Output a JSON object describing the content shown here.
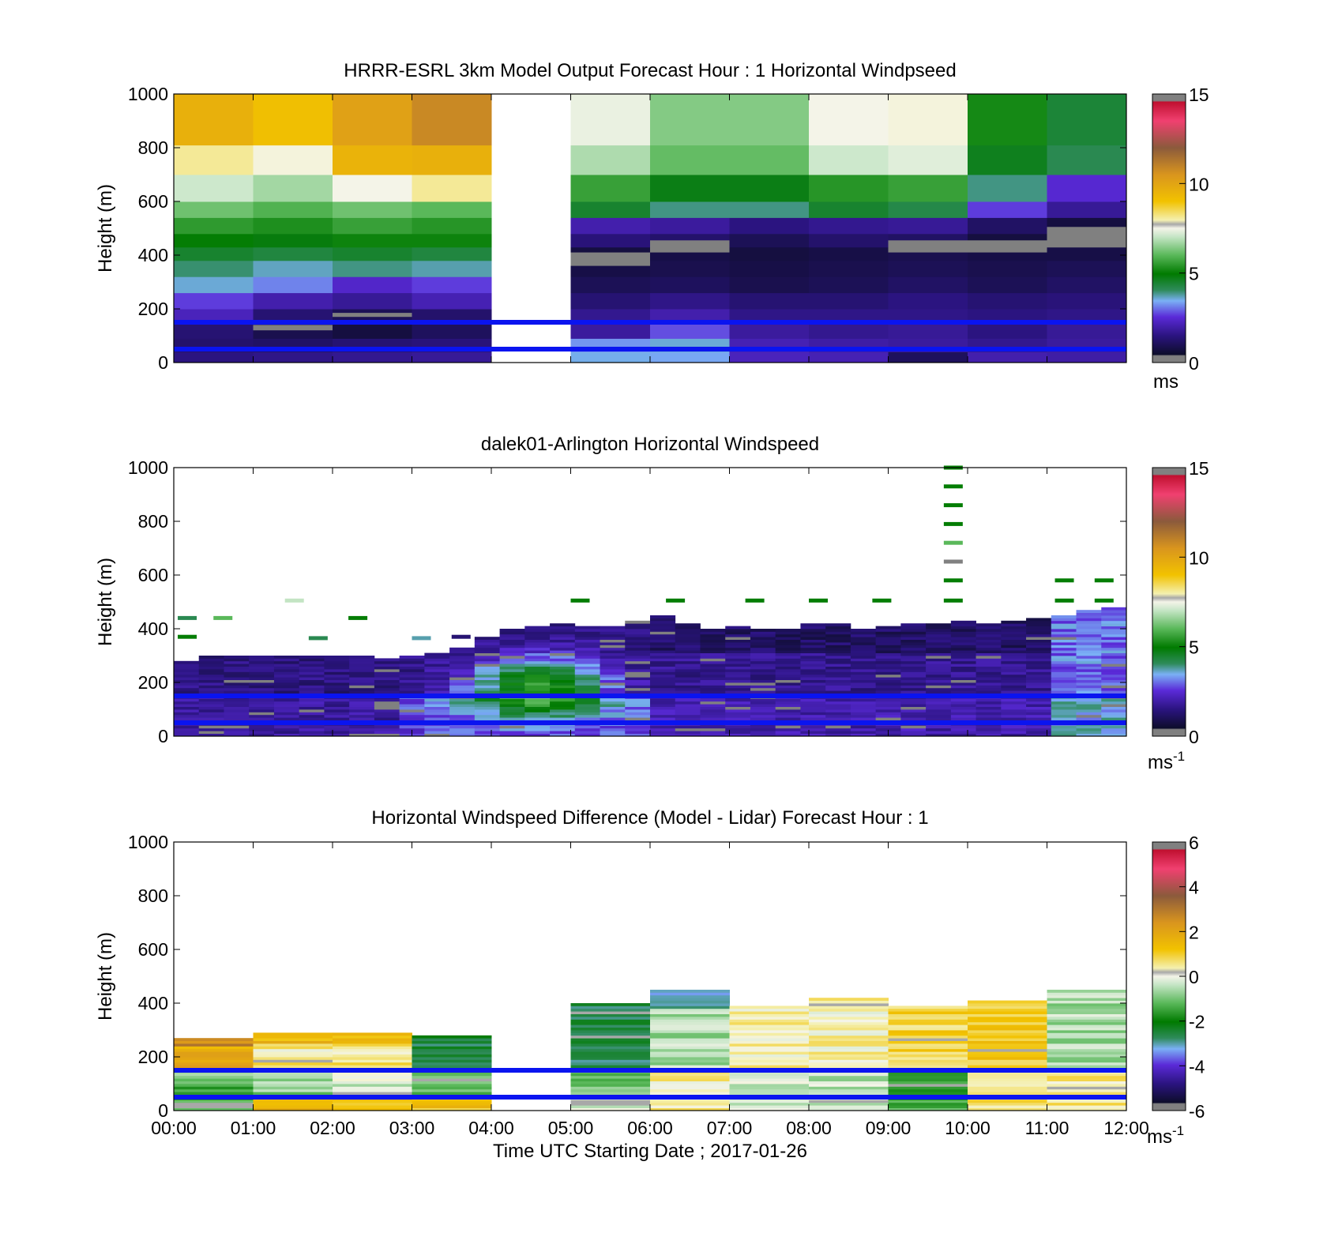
{
  "figure": {
    "xlabel": "Time UTC  Starting Date ; 2017-01-26",
    "x_tick_labels": [
      "00:00",
      "01:00",
      "02:00",
      "03:00",
      "04:00",
      "05:00",
      "06:00",
      "07:00",
      "08:00",
      "09:00",
      "10:00",
      "11:00",
      "12:00"
    ]
  },
  "chart_data": [
    {
      "type": "heatmap",
      "title": "HRRR-ESRL 3km Model Output   Forecast Hour : 1 Horizontal Windpseed",
      "ylabel": "Height (m)",
      "ylim": [
        0,
        1000
      ],
      "xlim_hours": [
        0,
        12
      ],
      "y_tick_labels": [
        "0",
        "200",
        "400",
        "600",
        "800",
        "1000"
      ],
      "colorbar": {
        "min": 0,
        "max": 15,
        "ticks": [
          "0",
          "5",
          "10",
          "15"
        ],
        "unit_label": "ms",
        "unit_superscript": ""
      },
      "reference_lines_m": [
        50,
        150
      ],
      "reference_line_color": "#0a14f0",
      "missing_hours": [
        [
          4,
          5
        ]
      ],
      "height_levels_m": [
        0,
        40,
        90,
        150,
        200,
        260,
        320,
        380,
        430,
        480,
        540,
        600,
        700,
        810,
        1000
      ],
      "hour_columns": [
        {
          "hour": 0,
          "speeds": [
            1.2,
            0.9,
            1.0,
            2.0,
            2.5,
            3.3,
            3.8,
            4.4,
            5.0,
            5.5,
            6.2,
            7.1,
            8.1,
            9.6
          ]
        },
        {
          "hour": 1,
          "speeds": [
            1.3,
            0.8,
            0.5,
            1.0,
            1.8,
            2.9,
            3.4,
            4.2,
            4.8,
            5.3,
            5.9,
            6.7,
            7.6,
            9.1
          ]
        },
        {
          "hour": 2,
          "speeds": [
            1.4,
            1.0,
            0.3,
            0.6,
            1.5,
            2.2,
            3.7,
            4.4,
            5.1,
            5.6,
            6.2,
            7.5,
            9.5,
            10.1
          ]
        },
        {
          "hour": 3,
          "speeds": [
            1.5,
            1.1,
            0.7,
            0.9,
            1.9,
            2.5,
            3.5,
            4.2,
            5.1,
            5.4,
            6.0,
            8.1,
            9.6,
            10.8
          ]
        },
        {
          "hour": 5,
          "speeds": [
            3.2,
            3.0,
            1.6,
            1.4,
            1.0,
            0.6,
            0.4,
            0.3,
            1.1,
            1.8,
            4.4,
            5.6,
            6.8,
            7.4
          ]
        },
        {
          "hour": 6,
          "speeds": [
            3.1,
            3.3,
            2.6,
            1.8,
            1.3,
            0.7,
            0.5,
            0.4,
            0.9,
            1.6,
            3.7,
            4.7,
            6.1,
            6.4
          ]
        },
        {
          "hour": 7,
          "speeds": [
            2.0,
            1.9,
            1.6,
            1.3,
            1.0,
            0.5,
            0.4,
            0.3,
            0.6,
            1.2,
            3.7,
            4.7,
            6.1,
            6.4
          ]
        },
        {
          "hour": 8,
          "speeds": [
            1.9,
            1.7,
            1.4,
            1.3,
            1.0,
            0.6,
            0.5,
            0.4,
            0.9,
            1.4,
            4.4,
            5.4,
            7.1,
            7.5
          ]
        },
        {
          "hour": 9,
          "speeds": [
            0.7,
            1.6,
            1.5,
            1.3,
            1.2,
            0.8,
            0.6,
            0.5,
            0.8,
            1.5,
            4.1,
            5.6,
            7.3,
            7.6
          ]
        },
        {
          "hour": 10,
          "speeds": [
            1.8,
            1.4,
            1.2,
            1.2,
            1.0,
            0.6,
            0.5,
            0.4,
            0.3,
            0.8,
            2.5,
            3.7,
            4.6,
            5.2
          ]
        },
        {
          "hour": 11,
          "speeds": [
            1.7,
            1.6,
            1.5,
            1.3,
            1.1,
            0.8,
            0.6,
            0.4,
            0.1,
            0.3,
            1.5,
            2.3,
            4.0,
            4.3
          ]
        }
      ],
      "missing_value_cells": [
        {
          "hour": 1,
          "from_m": 120,
          "to_m": 140
        },
        {
          "hour": 2,
          "from_m": 170,
          "to_m": 185
        },
        {
          "hour": 5,
          "from_m": 360,
          "to_m": 410
        },
        {
          "hour": 6,
          "from_m": 410,
          "to_m": 455
        },
        {
          "hour": 9,
          "from_m": 410,
          "to_m": 455
        },
        {
          "hour": 10,
          "from_m": 410,
          "to_m": 455
        },
        {
          "hour": 11,
          "from_m": 455,
          "to_m": 505
        }
      ]
    },
    {
      "type": "heatmap",
      "title": "dalek01-Arlington  Horizontal Windspeed",
      "ylabel": "Height (m)",
      "ylim": [
        0,
        1000
      ],
      "xlim_hours": [
        0,
        12
      ],
      "y_tick_labels": [
        "0",
        "200",
        "400",
        "600",
        "800",
        "1000"
      ],
      "colorbar": {
        "min": 0,
        "max": 15,
        "ticks": [
          "0",
          "5",
          "10",
          "15"
        ],
        "unit_label": "ms",
        "unit_superscript": "-1"
      },
      "reference_lines_m": [
        50,
        150
      ],
      "reference_line_color": "#0a14f0",
      "data_top_m": [
        280,
        300,
        300,
        300,
        300,
        300,
        300,
        300,
        290,
        300,
        310,
        330,
        370,
        400,
        410,
        420,
        410,
        410,
        430,
        450,
        420,
        400,
        410,
        400,
        400,
        420,
        420,
        400,
        410,
        420,
        420,
        430,
        420,
        430,
        440,
        450,
        470,
        480
      ],
      "sparse_returns": [
        {
          "hour": 0.05,
          "height_m": 440,
          "speed": 4.0
        },
        {
          "hour": 0.05,
          "height_m": 370,
          "speed": 5.0
        },
        {
          "hour": 0.5,
          "height_m": 440,
          "speed": 6.0
        },
        {
          "hour": 1.4,
          "height_m": 505,
          "speed": 7.0
        },
        {
          "hour": 1.7,
          "height_m": 365,
          "speed": 4.0
        },
        {
          "hour": 2.2,
          "height_m": 440,
          "speed": 5.0
        },
        {
          "hour": 3.0,
          "height_m": 365,
          "speed": 3.5
        },
        {
          "hour": 3.5,
          "height_m": 370,
          "speed": 1.0
        },
        {
          "hour": 5.0,
          "height_m": 505,
          "speed": 5.0
        },
        {
          "hour": 6.2,
          "height_m": 505,
          "speed": 5.0
        },
        {
          "hour": 7.2,
          "height_m": 505,
          "speed": 5.0
        },
        {
          "hour": 8.0,
          "height_m": 505,
          "speed": 5.0
        },
        {
          "hour": 8.8,
          "height_m": 505,
          "speed": 5.0
        },
        {
          "hour": 9.7,
          "height_m": 1000,
          "speed": 5.0
        },
        {
          "hour": 9.7,
          "height_m": 930,
          "speed": 5.0
        },
        {
          "hour": 9.7,
          "height_m": 860,
          "speed": 5.0
        },
        {
          "hour": 9.7,
          "height_m": 790,
          "speed": 5.0
        },
        {
          "hour": 9.7,
          "height_m": 720,
          "speed": 6.0
        },
        {
          "hour": 9.7,
          "height_m": 650,
          "speed": 0.2
        },
        {
          "hour": 9.7,
          "height_m": 580,
          "speed": 5.0
        },
        {
          "hour": 9.7,
          "height_m": 505,
          "speed": 5.0
        },
        {
          "hour": 11.1,
          "height_m": 505,
          "speed": 5.0
        },
        {
          "hour": 11.1,
          "height_m": 580,
          "speed": 5.0
        },
        {
          "hour": 11.6,
          "height_m": 505,
          "speed": 5.0
        },
        {
          "hour": 11.6,
          "height_m": 580,
          "speed": 5.0
        }
      ]
    },
    {
      "type": "heatmap",
      "title": "Horizontal Windspeed Difference (Model - Lidar) Forecast Hour : 1",
      "ylabel": "Height (m)",
      "ylim": [
        0,
        1000
      ],
      "xlim_hours": [
        0,
        12
      ],
      "y_tick_labels": [
        "0",
        "200",
        "400",
        "600",
        "800",
        "1000"
      ],
      "colorbar": {
        "min": -6,
        "max": 6,
        "ticks": [
          "-6",
          "-4",
          "-2",
          "0",
          "2",
          "4",
          "6"
        ],
        "unit_label": "ms",
        "unit_superscript": "-1"
      },
      "reference_lines_m": [
        50,
        150
      ],
      "reference_line_color": "#0a14f0",
      "missing_hours": [
        [
          4,
          5
        ]
      ],
      "hour_columns": [
        {
          "hour": 0,
          "top_m": 270,
          "layers": [
            {
              "from_m": 160,
              "to_m": 270,
              "value": 1.8
            },
            {
              "from_m": 240,
              "to_m": 270,
              "value": 2.6
            },
            {
              "from_m": 120,
              "to_m": 160,
              "value": -0.6
            },
            {
              "from_m": 40,
              "to_m": 120,
              "value": -1.4
            },
            {
              "from_m": 0,
              "to_m": 40,
              "value": -0.8
            }
          ]
        },
        {
          "hour": 1,
          "top_m": 290,
          "layers": [
            {
              "from_m": 250,
              "to_m": 290,
              "value": 1.6
            },
            {
              "from_m": 200,
              "to_m": 250,
              "value": 0.4
            },
            {
              "from_m": 150,
              "to_m": 200,
              "value": 0.8
            },
            {
              "from_m": 60,
              "to_m": 150,
              "value": -0.8
            },
            {
              "from_m": 0,
              "to_m": 60,
              "value": 1.7
            }
          ]
        },
        {
          "hour": 2,
          "top_m": 290,
          "layers": [
            {
              "from_m": 250,
              "to_m": 290,
              "value": 1.2
            },
            {
              "from_m": 150,
              "to_m": 250,
              "value": 0.5
            },
            {
              "from_m": 60,
              "to_m": 150,
              "value": -0.3
            },
            {
              "from_m": 0,
              "to_m": 60,
              "value": 1.4
            }
          ]
        },
        {
          "hour": 3,
          "top_m": 280,
          "layers": [
            {
              "from_m": 150,
              "to_m": 280,
              "value": -2.6
            },
            {
              "from_m": 60,
              "to_m": 150,
              "value": -1.2
            },
            {
              "from_m": 0,
              "to_m": 60,
              "value": 1.2
            }
          ]
        },
        {
          "hour": 5,
          "top_m": 400,
          "layers": [
            {
              "from_m": 150,
              "to_m": 400,
              "value": -2.8
            },
            {
              "from_m": 60,
              "to_m": 150,
              "value": -1.0
            },
            {
              "from_m": 0,
              "to_m": 60,
              "value": -0.4
            }
          ]
        },
        {
          "hour": 6,
          "top_m": 450,
          "layers": [
            {
              "from_m": 380,
              "to_m": 450,
              "value": -3.3
            },
            {
              "from_m": 150,
              "to_m": 380,
              "value": -0.6
            },
            {
              "from_m": 0,
              "to_m": 150,
              "value": 0.4
            }
          ]
        },
        {
          "hour": 7,
          "top_m": 390,
          "layers": [
            {
              "from_m": 150,
              "to_m": 390,
              "value": 0.3
            },
            {
              "from_m": 0,
              "to_m": 150,
              "value": -0.2
            }
          ]
        },
        {
          "hour": 8,
          "top_m": 420,
          "layers": [
            {
              "from_m": 150,
              "to_m": 420,
              "value": 0.3
            },
            {
              "from_m": 0,
              "to_m": 150,
              "value": -0.5
            }
          ]
        },
        {
          "hour": 9,
          "top_m": 390,
          "layers": [
            {
              "from_m": 150,
              "to_m": 390,
              "value": 0.9
            },
            {
              "from_m": 0,
              "to_m": 150,
              "value": -1.5
            }
          ]
        },
        {
          "hour": 10,
          "top_m": 410,
          "layers": [
            {
              "from_m": 150,
              "to_m": 410,
              "value": 1.1
            },
            {
              "from_m": 0,
              "to_m": 150,
              "value": 0.6
            }
          ]
        },
        {
          "hour": 11,
          "top_m": 450,
          "layers": [
            {
              "from_m": 150,
              "to_m": 450,
              "value": -0.6
            },
            {
              "from_m": 0,
              "to_m": 150,
              "value": 0.5
            }
          ]
        }
      ]
    }
  ]
}
